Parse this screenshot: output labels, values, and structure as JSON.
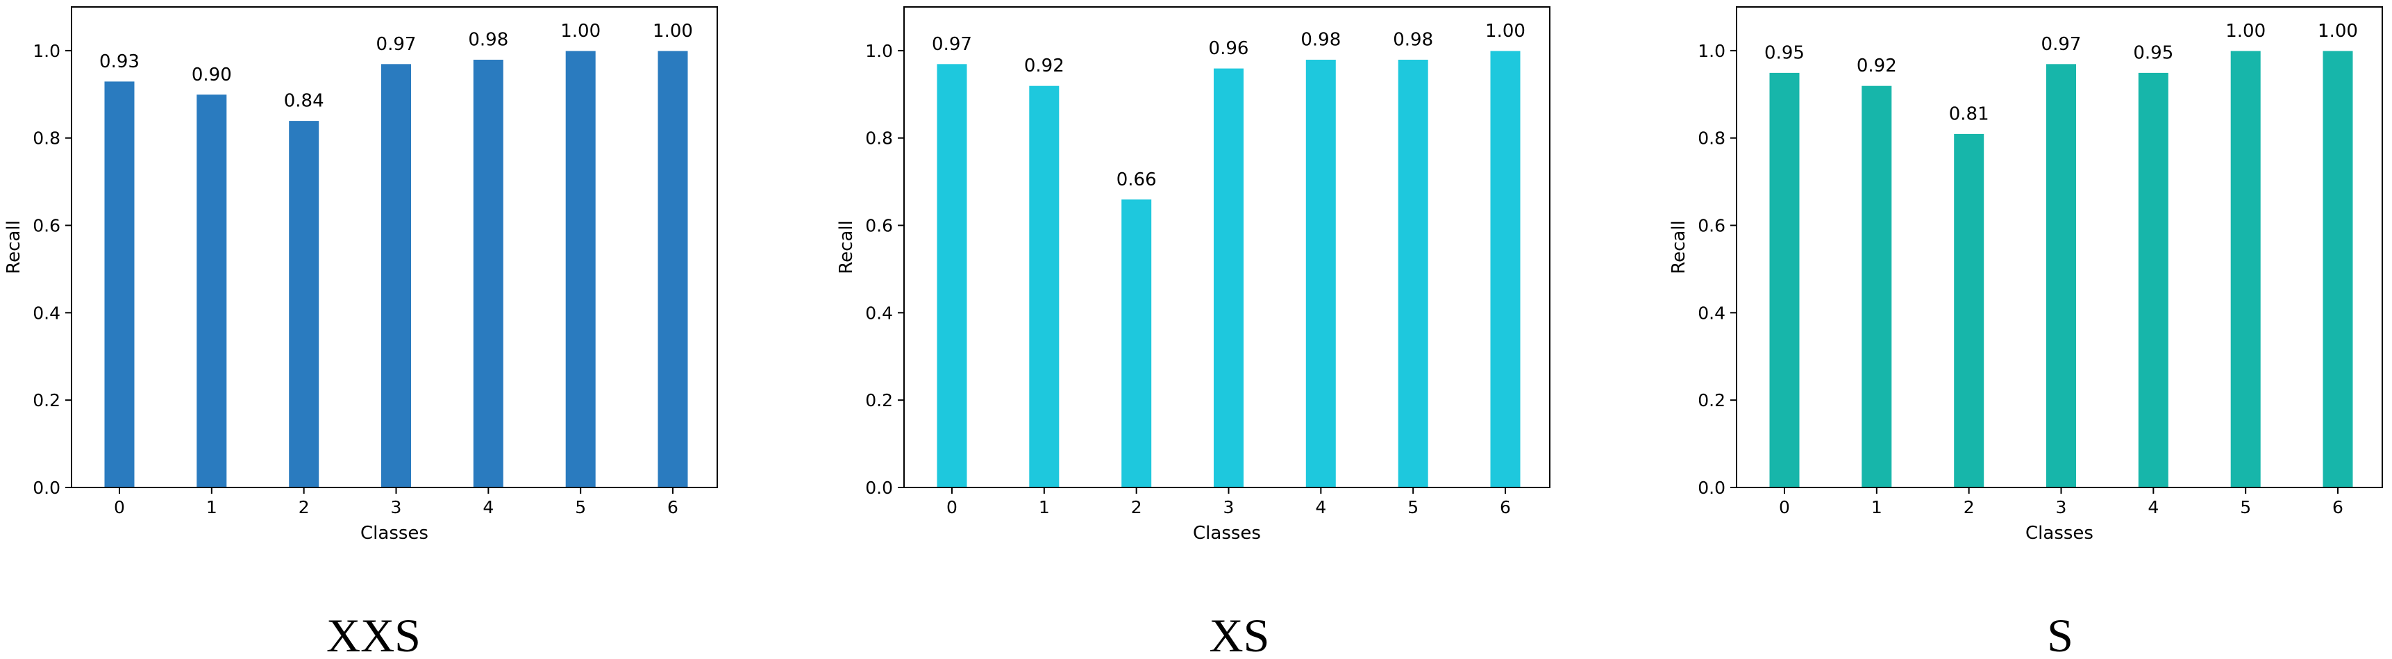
{
  "chart_data": [
    {
      "type": "bar",
      "categories": [
        "0",
        "1",
        "2",
        "3",
        "4",
        "5",
        "6"
      ],
      "values": [
        0.93,
        0.9,
        0.84,
        0.97,
        0.98,
        1.0,
        1.0
      ],
      "value_labels": [
        "0.93",
        "0.90",
        "0.84",
        "0.97",
        "0.98",
        "1.00",
        "1.00"
      ],
      "xlabel": "Classes",
      "ylabel": "Recall",
      "ylim": [
        0,
        1.1
      ],
      "yticks": [
        "0.0",
        "0.2",
        "0.4",
        "0.6",
        "0.8",
        "1.0"
      ],
      "color": "#2a7bbf",
      "grid": false,
      "caption": "XXS"
    },
    {
      "type": "bar",
      "categories": [
        "0",
        "1",
        "2",
        "3",
        "4",
        "5",
        "6"
      ],
      "values": [
        0.97,
        0.92,
        0.66,
        0.96,
        0.98,
        0.98,
        1.0
      ],
      "value_labels": [
        "0.97",
        "0.92",
        "0.66",
        "0.96",
        "0.98",
        "0.98",
        "1.00"
      ],
      "xlabel": "Classes",
      "ylabel": "Recall",
      "ylim": [
        0,
        1.1
      ],
      "yticks": [
        "0.0",
        "0.2",
        "0.4",
        "0.6",
        "0.8",
        "1.0"
      ],
      "color": "#1ec8dd",
      "grid": false,
      "caption": "XS"
    },
    {
      "type": "bar",
      "categories": [
        "0",
        "1",
        "2",
        "3",
        "4",
        "5",
        "6"
      ],
      "values": [
        0.95,
        0.92,
        0.81,
        0.97,
        0.95,
        1.0,
        1.0
      ],
      "value_labels": [
        "0.95",
        "0.92",
        "0.81",
        "0.97",
        "0.95",
        "1.00",
        "1.00"
      ],
      "xlabel": "Classes",
      "ylabel": "Recall",
      "ylim": [
        0,
        1.1
      ],
      "yticks": [
        "0.0",
        "0.2",
        "0.4",
        "0.6",
        "0.8",
        "1.0"
      ],
      "color": "#17b6aa",
      "grid": false,
      "caption": "S"
    }
  ]
}
